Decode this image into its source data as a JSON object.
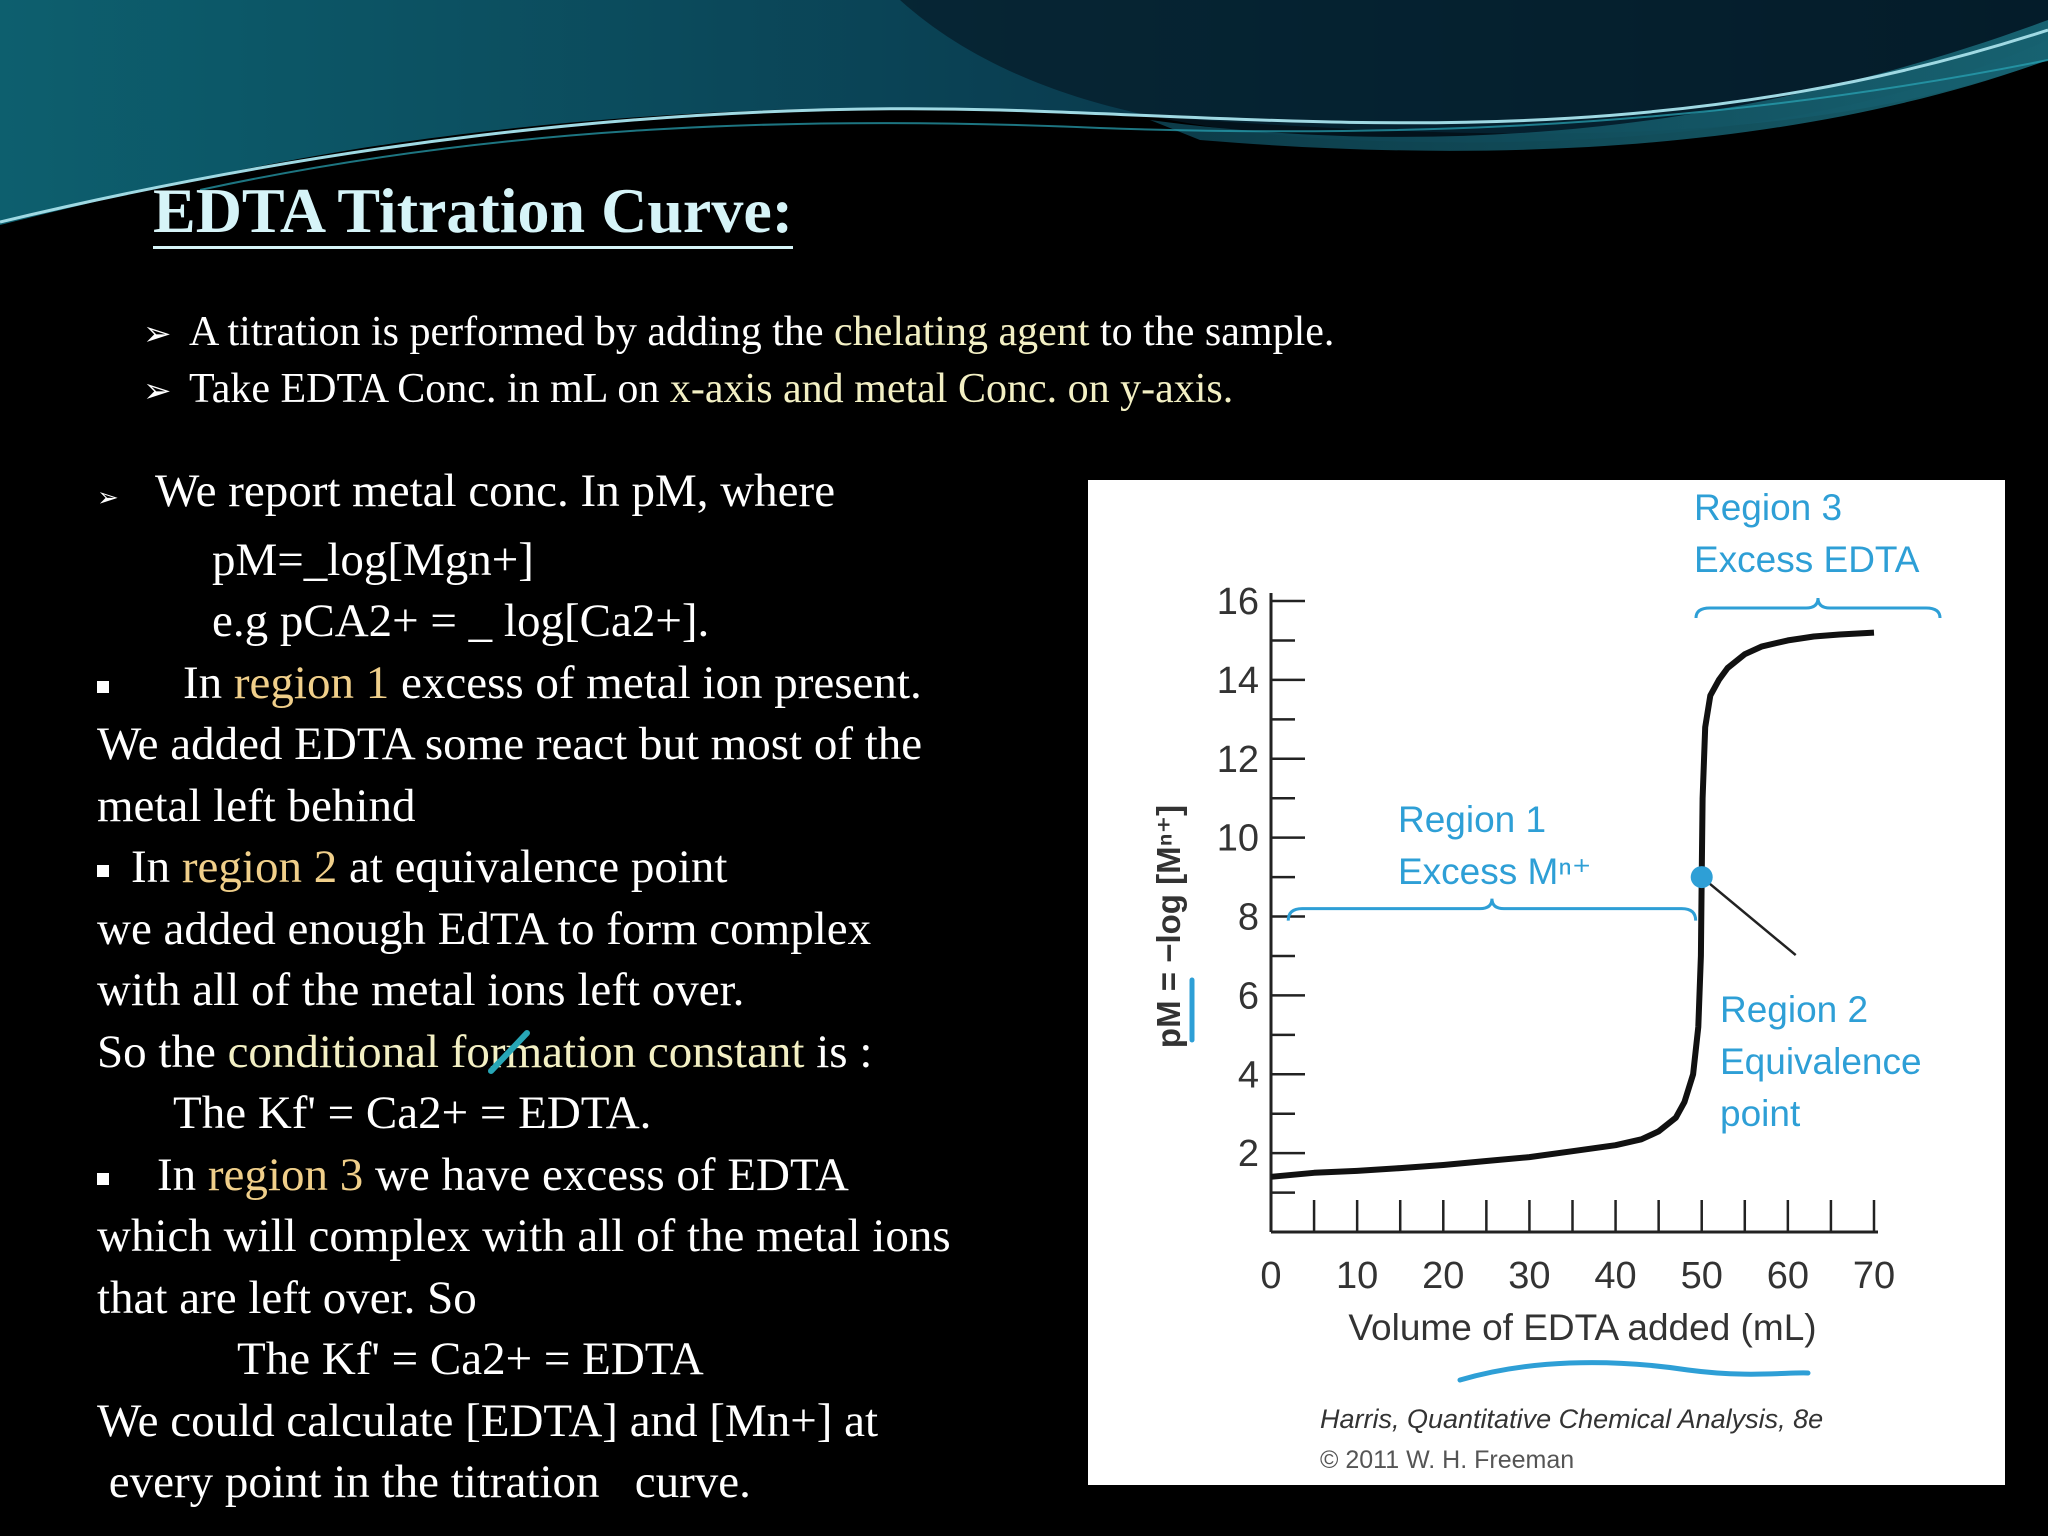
{
  "slide": {
    "title": "EDTA Titration Curve:",
    "intro": [
      {
        "pre": "A titration is performed by adding the ",
        "hl": "chelating agent",
        "post": " to the sample."
      },
      {
        "pre": "Take EDTA Conc. in mL on ",
        "hl": "x-axis and metal Conc. on y-axis.",
        "post": ""
      }
    ],
    "body": {
      "l1": "We report metal conc. In pM, where",
      "l2": "pM=_log[Mgn+]",
      "l3": "e.g  pCA2+ = _ log[Ca2+].",
      "l4_pre": "In ",
      "l4_reg": "region 1",
      "l4_post": " excess of metal ion present.",
      "l5": "We added EDTA  some react but most of the",
      "l6": "metal left behind",
      "l7_pre": "In ",
      "l7_reg": "region 2",
      "l7_post": " at equivalence point",
      "l8": "we added enough EdTA to form complex",
      "l9": "with all of the metal ions left over.",
      "l10_pre": "So the ",
      "l10_hl": "conditional formation constant",
      "l10_post": " is :",
      "l11": "The Kf' = Ca2+ = EDTA.",
      "l12_pre": "In ",
      "l12_reg": "region 3",
      "l12_post": " we have excess of EDTA",
      "l13": "which will complex with all of the metal ions",
      "l14": "that are left over. So",
      "l15": "The Kf' = Ca2+ = EDTA",
      "l16": "We could calculate [EDTA] and [Mn+] at",
      "l17": " every point in the titration   curve."
    }
  },
  "colors": {
    "accent_text": "#f3f0c4",
    "region_text": "#f0cf8a",
    "figure_blue": "#2e9fd6",
    "title": "#d6f4f8"
  },
  "chart_data": {
    "type": "line",
    "xlabel": "Volume of EDTA added (mL)",
    "ylabel": "pM = −log [Mⁿ⁺]",
    "xlim": [
      0,
      70
    ],
    "ylim": [
      0,
      16
    ],
    "x_ticks": [
      "0",
      "10",
      "20",
      "30",
      "40",
      "50",
      "60",
      "70"
    ],
    "y_ticks": [
      "2",
      "4",
      "6",
      "8",
      "10",
      "12",
      "14",
      "16"
    ],
    "curve": {
      "x": [
        0,
        5,
        10,
        15,
        20,
        25,
        30,
        35,
        40,
        43,
        45,
        47,
        48,
        49,
        49.6,
        49.9,
        50,
        50.1,
        50.4,
        51,
        52,
        53,
        55,
        57,
        60,
        63,
        66,
        70
      ],
      "y": [
        1.4,
        1.5,
        1.55,
        1.62,
        1.7,
        1.8,
        1.9,
        2.05,
        2.2,
        2.35,
        2.55,
        2.9,
        3.3,
        4.0,
        5.2,
        7.0,
        9.0,
        11.0,
        12.8,
        13.6,
        14.0,
        14.3,
        14.65,
        14.85,
        15.0,
        15.1,
        15.15,
        15.2
      ]
    },
    "equivalence_point": {
      "x": 50,
      "y": 9
    },
    "annotations": {
      "region1": [
        "Region 1",
        "Excess Mⁿ⁺"
      ],
      "region2": [
        "Region 2",
        "Equivalence",
        "point"
      ],
      "region3": [
        "Region 3",
        "Excess EDTA"
      ]
    },
    "credit": [
      "Harris, Quantitative Chemical Analysis, 8e",
      "© 2011 W. H. Freeman"
    ]
  }
}
